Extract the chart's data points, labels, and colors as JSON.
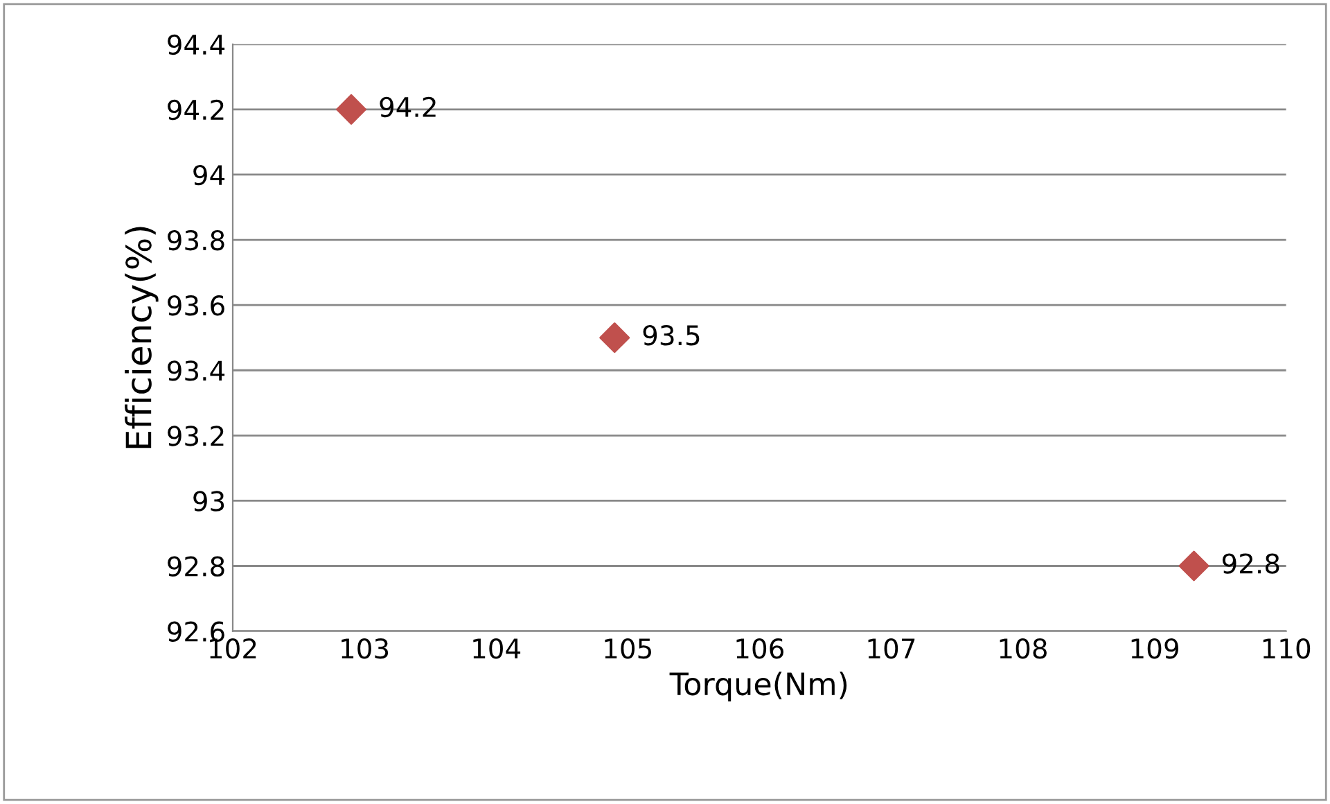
{
  "chart_data": {
    "type": "scatter",
    "xlabel": "Torque(Nm)",
    "ylabel": "Efficiency(%)",
    "x": [
      102.9,
      104.9,
      109.3
    ],
    "values": [
      94.2,
      93.5,
      92.8
    ],
    "color": "#c0504d",
    "marker": "diamond",
    "data_labels": true,
    "xlim": [
      102,
      110
    ],
    "xticks": [
      102,
      103,
      104,
      105,
      106,
      107,
      108,
      109,
      110
    ],
    "ylim": [
      92.6,
      94.4
    ],
    "yticks": [
      92.6,
      92.8,
      93,
      93.2,
      93.4,
      93.6,
      93.8,
      94,
      94.2,
      94.4
    ],
    "grid": "y"
  }
}
